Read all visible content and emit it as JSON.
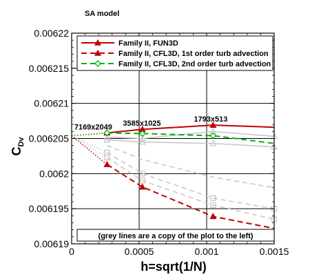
{
  "chart_data": {
    "type": "line",
    "title": "SA model",
    "xlabel": "h=sqrt(1/N)",
    "ylabel": "C",
    "ylabel_sub": "Dv",
    "xlim": [
      0,
      0.0015
    ],
    "ylim": [
      0.00619,
      0.00622
    ],
    "x_ticks": [
      0,
      0.0005,
      0.001,
      0.0015
    ],
    "x_tick_labels": [
      "0",
      "0.0005",
      "0.001",
      "0.0015"
    ],
    "y_ticks": [
      0.00619,
      0.006195,
      0.0062,
      0.006205,
      0.00621,
      0.006215,
      0.00622
    ],
    "y_tick_labels": [
      "0.00619",
      "0.006195",
      "0.0062",
      "0.006205",
      "0.00621",
      "0.006215",
      "0.00622"
    ],
    "grid": true,
    "legend_position": "top-right",
    "colors": {
      "red": "#c00000",
      "green": "#00b000",
      "grey": "#c8c8c8"
    },
    "series": [
      {
        "name": "Family II, FUN3D",
        "color": "#c00000",
        "dash": "solid",
        "marker": "triangle-filled",
        "x": [
          0.000262,
          0.000524,
          0.001048,
          0.0015
        ],
        "y": [
          0.0062058,
          0.0062063,
          0.0062069,
          0.0062066
        ]
      },
      {
        "name": "Family II, CFL3D, 1st order turb advection",
        "color": "#c00000",
        "dash": "dashed",
        "marker": "triangle-filled",
        "x": [
          0.000262,
          0.000524,
          0.001048,
          0.0015
        ],
        "y": [
          0.0062013,
          0.0061981,
          0.0061939,
          0.0061922
        ]
      },
      {
        "name": "Family II, CFL3D, 2nd order turb advection",
        "color": "#00b000",
        "dash": "dashed",
        "marker": "diamond-open",
        "x": [
          0.000262,
          0.000524,
          0.001048,
          0.0015
        ],
        "y": [
          0.0062058,
          0.0062057,
          0.0062054,
          0.0062043
        ]
      }
    ],
    "extrapolations": [
      {
        "color": "#c00000",
        "x": [
          0,
          0.000262
        ],
        "y": [
          0.0062054,
          0.0062058
        ]
      },
      {
        "color": "#c00000",
        "x": [
          0,
          0.000262
        ],
        "y": [
          0.0062054,
          0.0062013
        ]
      },
      {
        "color": "#00b000",
        "x": [
          0,
          0.000262
        ],
        "y": [
          0.0062054,
          0.0062058
        ]
      }
    ],
    "grey_series": [
      {
        "dash": "solid",
        "marker": "triangle",
        "x": [
          0.000262,
          0.000524,
          0.001048,
          0.0015
        ],
        "y": [
          0.0062052,
          0.006205,
          0.006206,
          0.0062053
        ]
      },
      {
        "dash": "solid",
        "marker": "triangle",
        "x": [
          0.000262,
          0.000524,
          0.001048,
          0.0015
        ],
        "y": [
          0.0062048,
          0.0062045,
          0.0062043,
          0.0062038
        ]
      },
      {
        "dash": "dashed",
        "marker": "square",
        "x": [
          0.000262,
          0.000524,
          0.001048,
          0.0015
        ],
        "y": [
          0.006203,
          0.0062,
          0.0061965,
          0.006195
        ]
      },
      {
        "dash": "dashed",
        "marker": "square",
        "x": [
          0.000262,
          0.000524,
          0.001048,
          0.0015
        ],
        "y": [
          0.0062023,
          0.006199,
          0.0061955,
          0.0061935
        ]
      },
      {
        "dash": "dashed",
        "marker": "none",
        "x": [
          0.000262,
          0.000524,
          0.001048,
          0.0015
        ],
        "y": [
          0.006204,
          0.006202,
          0.0061995,
          0.006198
        ]
      }
    ],
    "grey_extrapolations": [
      {
        "x": [
          0,
          0.000262
        ],
        "y": [
          0.0062054,
          0.006203
        ]
      },
      {
        "x": [
          0,
          0.000262
        ],
        "y": [
          0.0062054,
          0.0062023
        ]
      }
    ],
    "annotations": [
      {
        "text": "7169x2049",
        "x": 0.00016,
        "y": 0.0062063
      },
      {
        "text": "3585x1025",
        "x": 0.00052,
        "y": 0.0062068
      },
      {
        "text": "1793x513",
        "x": 0.00103,
        "y": 0.0062074
      }
    ],
    "note": "(grey lines are a copy of the plot to the left)"
  }
}
